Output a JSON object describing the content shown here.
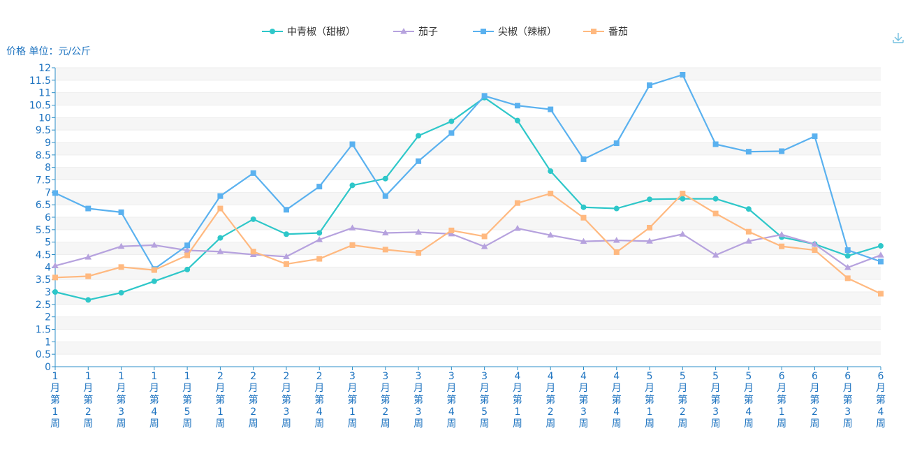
{
  "toolbar": {
    "download_icon": "download-icon"
  },
  "chart_data": {
    "type": "line",
    "ylabel": "价格 单位：元/公斤",
    "ylim": [
      0,
      12
    ],
    "ytick_step": 0.5,
    "grid": true,
    "legend": "top-center",
    "categories": [
      "1月第1周",
      "1月第2周",
      "1月第3周",
      "1月第4周",
      "1月第5周",
      "2月第1周",
      "2月第2周",
      "2月第3周",
      "2月第4周",
      "3月第1周",
      "3月第2周",
      "3月第3周",
      "3月第4周",
      "3月第5周",
      "4月第1周",
      "4月第2周",
      "4月第3周",
      "4月第4周",
      "5月第1周",
      "5月第2周",
      "5月第3周",
      "5月第4周",
      "6月第1周",
      "6月第2周",
      "6月第3周",
      "6月第4周"
    ],
    "series": [
      {
        "name": "中青椒（甜椒）",
        "color": "#2ec7c9",
        "marker": "circle",
        "values": [
          3.0,
          2.68,
          2.97,
          3.43,
          3.9,
          5.17,
          5.92,
          5.32,
          5.37,
          7.28,
          7.55,
          9.27,
          9.85,
          10.8,
          9.88,
          7.85,
          6.4,
          6.35,
          6.72,
          6.74,
          6.74,
          6.33,
          5.2,
          4.92,
          4.45,
          4.85
        ]
      },
      {
        "name": "茄子",
        "color": "#b6a2de",
        "marker": "triangle",
        "values": [
          4.05,
          4.4,
          4.83,
          4.88,
          4.67,
          4.62,
          4.5,
          4.42,
          5.1,
          5.57,
          5.37,
          5.4,
          5.33,
          4.82,
          5.55,
          5.28,
          5.03,
          5.07,
          5.04,
          5.32,
          4.48,
          5.04,
          5.3,
          4.92,
          3.98,
          4.48
        ]
      },
      {
        "name": "尖椒（辣椒）",
        "color": "#5ab1ef",
        "marker": "square",
        "values": [
          6.97,
          6.35,
          6.2,
          3.92,
          4.87,
          6.85,
          7.77,
          6.3,
          7.23,
          8.93,
          6.85,
          8.25,
          9.38,
          10.87,
          10.48,
          10.33,
          8.33,
          8.97,
          11.3,
          11.72,
          8.93,
          8.63,
          8.65,
          9.25,
          4.68,
          4.22
        ]
      },
      {
        "name": "番茄",
        "color": "#ffb980",
        "marker": "square",
        "values": [
          3.58,
          3.63,
          4.0,
          3.88,
          4.47,
          6.35,
          4.62,
          4.12,
          4.33,
          4.88,
          4.7,
          4.57,
          5.47,
          5.23,
          6.57,
          6.95,
          5.98,
          4.6,
          5.58,
          6.95,
          6.15,
          5.42,
          4.83,
          4.68,
          3.55,
          2.93
        ]
      }
    ]
  }
}
